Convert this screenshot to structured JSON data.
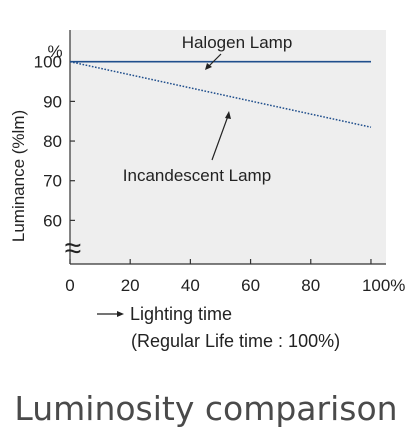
{
  "chart_data": {
    "type": "line",
    "title": "Luminosity comparison",
    "xlabel": "Lighting time",
    "xlabel_note": "(Regular Life time : 100%)",
    "ylabel": "Luminance (%lm)",
    "y_unit": "%",
    "break_symbol": "≈",
    "grid": false,
    "x_tick_labels": [
      "0",
      "20",
      "40",
      "60",
      "80",
      "100%"
    ],
    "x_ticks": [
      0,
      20,
      40,
      60,
      80,
      100
    ],
    "y_tick_labels": [
      "60",
      "70",
      "80",
      "90",
      "100"
    ],
    "y_ticks": [
      60,
      70,
      80,
      90,
      100
    ],
    "xlim": [
      0,
      105
    ],
    "ylim": [
      49,
      108
    ],
    "series": [
      {
        "name": "Halogen Lamp",
        "x": [
          0,
          100
        ],
        "values": [
          100,
          100
        ],
        "color": "#1f4e8c",
        "style": "solid"
      },
      {
        "name": "Incandescent Lamp",
        "x": [
          0,
          100
        ],
        "values": [
          100,
          83.5
        ],
        "color": "#1f4e8c",
        "style": "dotted"
      }
    ]
  }
}
